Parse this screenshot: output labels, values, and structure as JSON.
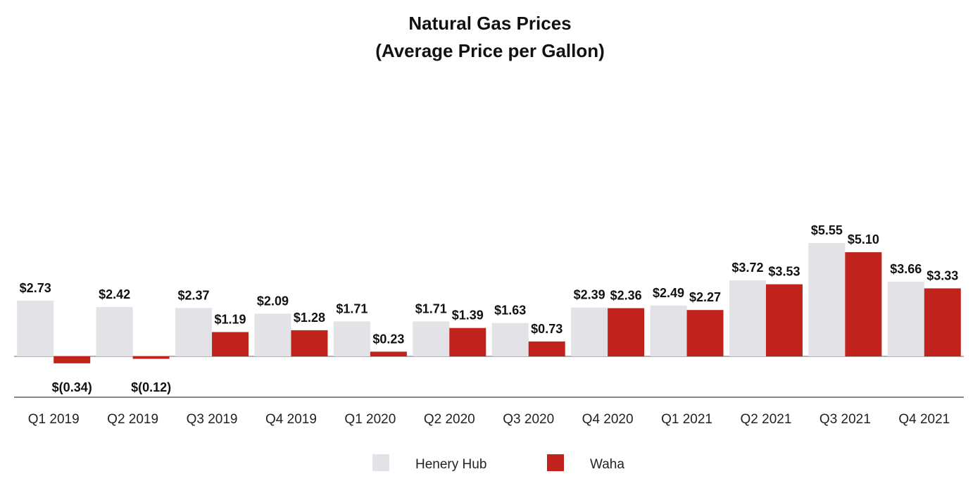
{
  "chart_data": {
    "type": "bar",
    "title": "Natural Gas Prices",
    "subtitle": "(Average Price per Gallon)",
    "categories": [
      "Q1 2019",
      "Q2 2019",
      "Q3 2019",
      "Q4 2019",
      "Q1 2020",
      "Q2 2020",
      "Q3 2020",
      "Q4 2020",
      "Q1 2021",
      "Q2 2021",
      "Q3 2021",
      "Q4 2021"
    ],
    "series": [
      {
        "name": "Henery Hub",
        "color": "#e2e2e7",
        "values": [
          2.73,
          2.42,
          2.37,
          2.09,
          1.71,
          1.71,
          1.63,
          2.39,
          2.49,
          3.72,
          5.55,
          3.66
        ],
        "labels": [
          "$2.73",
          "$2.42",
          "$2.37",
          "$2.09",
          "$1.71",
          "$1.71",
          "$1.63",
          "$2.39",
          "$2.49",
          "$3.72",
          "$5.55",
          "$3.66"
        ]
      },
      {
        "name": "Waha",
        "color": "#c0231b",
        "values": [
          -0.34,
          -0.12,
          1.19,
          1.28,
          0.23,
          1.39,
          0.73,
          2.36,
          2.27,
          3.53,
          5.1,
          3.33
        ],
        "labels": [
          "$(0.34)",
          "$(0.12)",
          "$1.19",
          "$1.28",
          "$0.23",
          "$1.39",
          "$0.73",
          "$2.36",
          "$2.27",
          "$3.53",
          "$5.10",
          "$3.33"
        ]
      }
    ],
    "xlabel": "",
    "ylabel": "",
    "ylim": [
      -0.34,
      5.55
    ],
    "grid": false,
    "legend": "bottom-center"
  }
}
